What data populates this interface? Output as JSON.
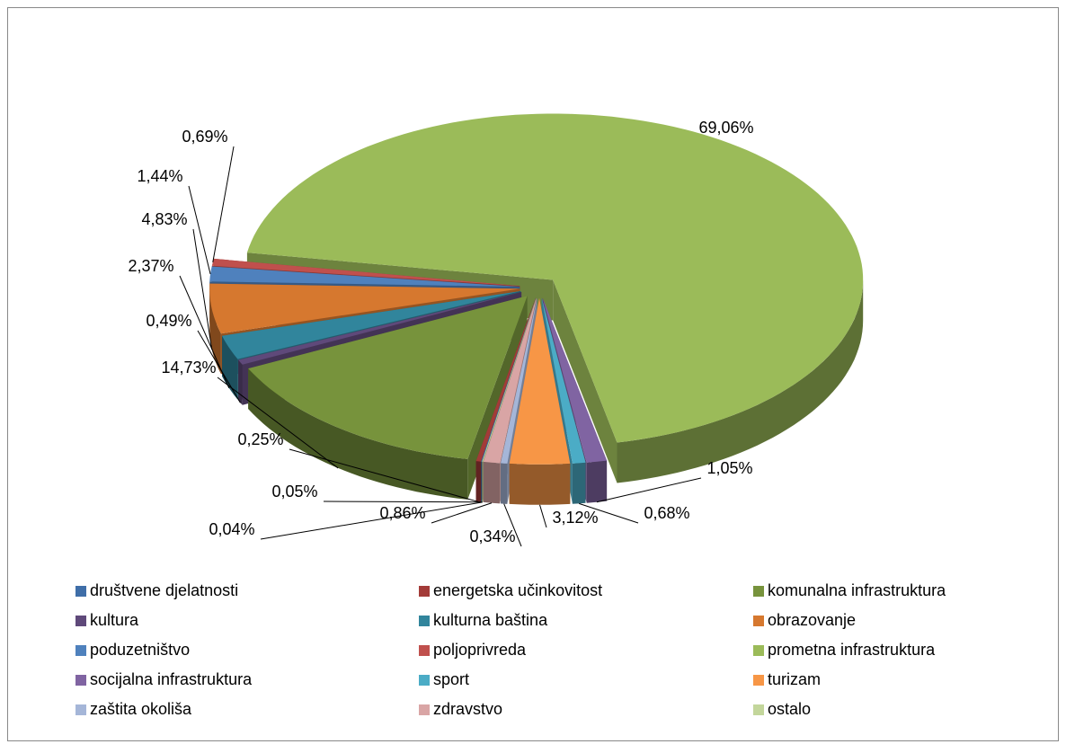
{
  "chart_data": {
    "type": "pie",
    "categories": [
      "društvene djelatnosti",
      "energetska učinkovitost",
      "komunalna infrastruktura",
      "kultura",
      "kulturna baština",
      "obrazovanje",
      "poduzetništvo",
      "poljoprivreda",
      "prometna infrastruktura",
      "socijalna infrastruktura",
      "sport",
      "turizam",
      "zaštita okoliša",
      "zdravstvo",
      "ostalo"
    ],
    "values": [
      0.05,
      0.25,
      14.73,
      0.49,
      2.37,
      4.83,
      1.44,
      0.69,
      69.06,
      1.05,
      0.68,
      3.12,
      0.34,
      0.86,
      0.04
    ],
    "value_labels": [
      "0,05%",
      "0,25%",
      "14,73%",
      "0,49%",
      "2,37%",
      "4,83%",
      "1,44%",
      "0,69%",
      "69,06%",
      "1,05%",
      "0,68%",
      "3,12%",
      "0,34%",
      "0,86%",
      "0,04%"
    ],
    "colors": [
      "#3f6ea8",
      "#a33b38",
      "#77933c",
      "#5f497a",
      "#31859c",
      "#d6782f",
      "#4f81bd",
      "#c0504d",
      "#9bbb59",
      "#8064a2",
      "#4bacc6",
      "#f79646",
      "#a5b6d8",
      "#d9a5a5",
      "#c3d69b"
    ],
    "legend": "bottom"
  }
}
